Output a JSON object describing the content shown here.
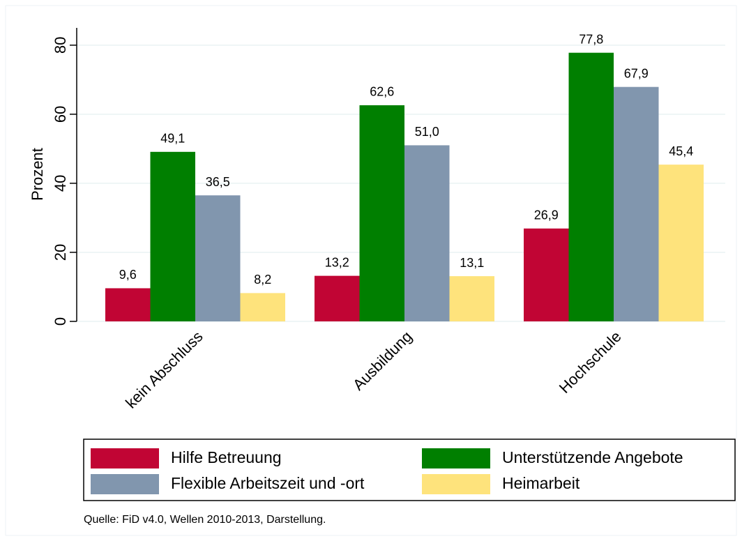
{
  "chart_data": {
    "type": "bar",
    "y_label": "Prozent",
    "categories": [
      "kein Abschluss",
      "Ausbildung",
      "Hochschule"
    ],
    "series": [
      {
        "name": "Hilfe Betreuung",
        "color": "#c10534",
        "values": [
          9.6,
          13.2,
          26.9
        ],
        "value_labels": [
          "9,6",
          "13,2",
          "26,9"
        ]
      },
      {
        "name": "Unterstützende Angebote",
        "color": "#007f00",
        "values": [
          49.1,
          62.6,
          77.8
        ],
        "value_labels": [
          "49,1",
          "62,6",
          "77,8"
        ]
      },
      {
        "name": "Flexible Arbeitszeit und -ort",
        "color": "#8196ae",
        "values": [
          36.5,
          51.0,
          67.9
        ],
        "value_labels": [
          "36,5",
          "51,0",
          "67,9"
        ]
      },
      {
        "name": "Heimarbeit",
        "color": "#fee37c",
        "values": [
          8.2,
          13.1,
          45.4
        ],
        "value_labels": [
          "8,2",
          "13,1",
          "45,4"
        ]
      }
    ],
    "ylim": [
      0,
      85
    ],
    "yticks": [
      0,
      20,
      40,
      60,
      80
    ],
    "grid": true,
    "note": "Quelle: FiD v4.0, Wellen 2010-2013, Darstellung."
  }
}
